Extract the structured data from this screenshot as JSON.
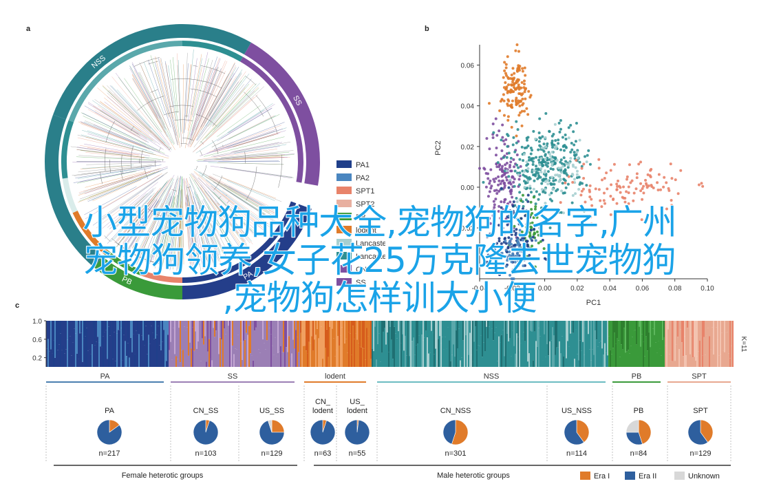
{
  "overlay": {
    "line1": "小型宠物狗品种大全,宠物狗的名字,广州",
    "line2": "宠物狗领养,女子花25万克隆去世宠物狗",
    "line3": ",宠物狗怎样训大小便"
  },
  "panel_a": {
    "letter": "a",
    "ring_labels": [
      "NSS",
      "SS",
      "PA",
      "PB"
    ],
    "legend": [
      {
        "label": "PA1",
        "color": "#1f3f8a"
      },
      {
        "label": "PA2",
        "color": "#4a86c0"
      },
      {
        "label": "SPT1",
        "color": "#e8836a"
      },
      {
        "label": "SPT2",
        "color": "#e8b0a0"
      },
      {
        "label": "PB",
        "color": "#3a9a3a"
      },
      {
        "label": "lodent",
        "color": "#e07b2a"
      },
      {
        "label": "Lancaster",
        "color": "#a7cfd0"
      },
      {
        "label": "Lancaster",
        "color": "#2e8f92"
      },
      {
        "label": "CN",
        "color": "#7e4fa0"
      },
      {
        "label": "SS",
        "color": "#7e4fa0"
      }
    ],
    "colors": {
      "nss": "#2a7f8a",
      "ss": "#7e4fa0",
      "pa": "#243e8a",
      "pb": "#3a9a3a",
      "lodent": "#e07b2a",
      "spt": "#e8836a"
    }
  },
  "panel_b": {
    "letter": "b",
    "xlabel": "PC1",
    "ylabel": "PC2",
    "x_ticks": [
      "-0.04",
      "-0.02",
      "0.00",
      "0.02",
      "0.04",
      "0.06",
      "0.08",
      "0.10"
    ],
    "y_ticks": [
      "0.06",
      "0.04",
      "0.02",
      "0.00",
      "-0.02"
    ]
  },
  "chart_data": {
    "type": "scatter",
    "xlabel": "PC1",
    "ylabel": "PC2",
    "xlim": [
      -0.04,
      0.1
    ],
    "ylim": [
      -0.045,
      0.07
    ],
    "series": [
      {
        "color": "#e07b2a",
        "cx": -0.018,
        "cy": 0.048,
        "sx": 0.004,
        "sy": 0.008,
        "n": 130
      },
      {
        "color": "#7e4fa0",
        "cx": -0.026,
        "cy": 0.005,
        "sx": 0.006,
        "sy": 0.012,
        "n": 140
      },
      {
        "color": "#2e8f92",
        "cx": 0.0,
        "cy": 0.01,
        "sx": 0.012,
        "sy": 0.01,
        "n": 300
      },
      {
        "color": "#a7cfd0",
        "cx": 0.005,
        "cy": 0.01,
        "sx": 0.01,
        "sy": 0.008,
        "n": 80
      },
      {
        "color": "#3a9a3a",
        "cx": -0.01,
        "cy": -0.02,
        "sx": 0.004,
        "sy": 0.008,
        "n": 60
      },
      {
        "color": "#1f3f8a",
        "cx": -0.018,
        "cy": -0.025,
        "sx": 0.007,
        "sy": 0.009,
        "n": 110
      },
      {
        "color": "#4a86c0",
        "cx": -0.02,
        "cy": -0.032,
        "sx": 0.005,
        "sy": 0.006,
        "n": 60
      },
      {
        "color": "#e8836a",
        "cx": 0.05,
        "cy": 0.0,
        "sx": 0.018,
        "sy": 0.006,
        "n": 110
      }
    ]
  },
  "panel_c": {
    "letter": "c",
    "y_ticks": [
      "1.0",
      "0.6",
      "0.2"
    ],
    "k_label": "K=11",
    "groups": [
      {
        "label": "PA",
        "color": "#4a7fb0"
      },
      {
        "label": "SS",
        "color": "#9b7fb5"
      },
      {
        "label": "lodent",
        "color": "#e07b2a"
      },
      {
        "label": "NSS",
        "color": "#6bbcc2"
      },
      {
        "label": "PB",
        "color": "#3a9a3a"
      },
      {
        "label": "SPT",
        "color": "#e8a890"
      }
    ],
    "pies": [
      {
        "title": "PA",
        "n": "n=217",
        "era1": 0.15,
        "era2": 0.85,
        "unknown": 0.0
      },
      {
        "title": "CN_SS",
        "n": "n=103",
        "era1": 0.05,
        "era2": 0.95,
        "unknown": 0.0
      },
      {
        "title": "US_SS",
        "n": "n=129",
        "era1": 0.25,
        "era2": 0.7,
        "unknown": 0.05
      },
      {
        "title": "CN_ lodent",
        "n": "n=63",
        "era1": 0.05,
        "era2": 0.95,
        "unknown": 0.0
      },
      {
        "title": "US_ lodent",
        "n": "n=55",
        "era1": 0.02,
        "era2": 0.98,
        "unknown": 0.0
      },
      {
        "title": "CN_NSS",
        "n": "n=301",
        "era1": 0.55,
        "era2": 0.45,
        "unknown": 0.0
      },
      {
        "title": "US_NSS",
        "n": "n=114",
        "era1": 0.4,
        "era2": 0.6,
        "unknown": 0.0
      },
      {
        "title": "PB",
        "n": "n=84",
        "era1": 0.45,
        "era2": 0.3,
        "unknown": 0.25
      },
      {
        "title": "SPT",
        "n": "n=129",
        "era1": 0.4,
        "era2": 0.6,
        "unknown": 0.0
      }
    ],
    "female_label": "Female heterotic groups",
    "male_label": "Male heterotic groups",
    "legend": [
      {
        "label": "Era I",
        "color": "#e07b2a"
      },
      {
        "label": "Era II",
        "color": "#2e5f9e"
      },
      {
        "label": "Unknown",
        "color": "#d8d8d8"
      }
    ]
  }
}
